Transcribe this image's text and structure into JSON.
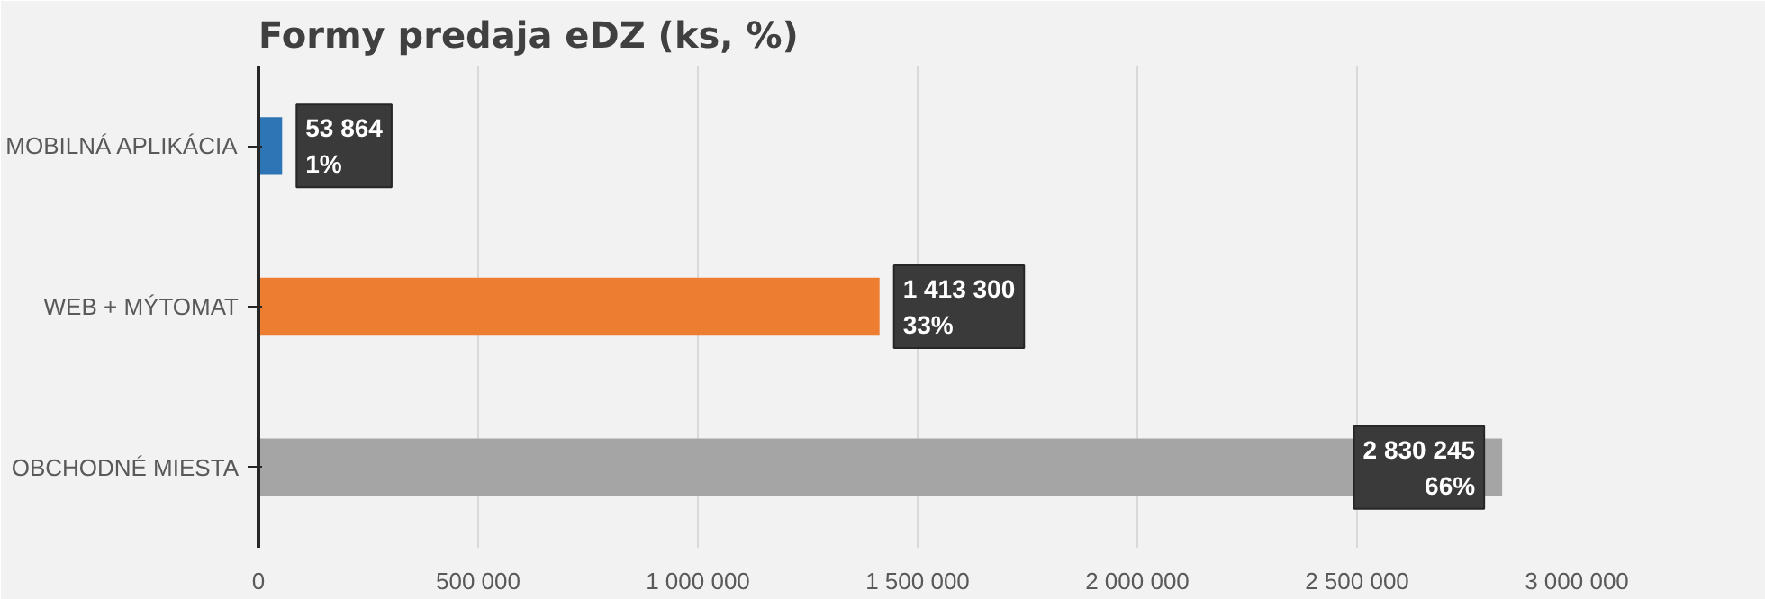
{
  "chart_data": {
    "type": "bar",
    "orientation": "horizontal",
    "title": "Formy predaja eDZ (ks, %)",
    "categories": [
      "MOBILNÁ APLIKÁCIA",
      "WEB + MÝTOMAT",
      "OBCHODNÉ MIESTA"
    ],
    "values": [
      53864,
      1413300,
      2830245
    ],
    "colors": [
      "#2e75b6",
      "#ed7d31",
      "#a5a5a5"
    ],
    "value_labels": [
      "53 864\n1%",
      "1 413 300\n33%",
      "2 830 245\n66%"
    ],
    "xlim": [
      0,
      3000000
    ],
    "xticks": [
      {
        "value": 0,
        "label": "0"
      },
      {
        "value": 500000,
        "label": "500 000"
      },
      {
        "value": 1000000,
        "label": "1 000 000"
      },
      {
        "value": 1500000,
        "label": "1 500 000"
      },
      {
        "value": 2000000,
        "label": "2 000 000"
      },
      {
        "value": 2500000,
        "label": "2 500 000"
      },
      {
        "value": 3000000,
        "label": "3 000 000"
      }
    ],
    "grid": "x"
  }
}
